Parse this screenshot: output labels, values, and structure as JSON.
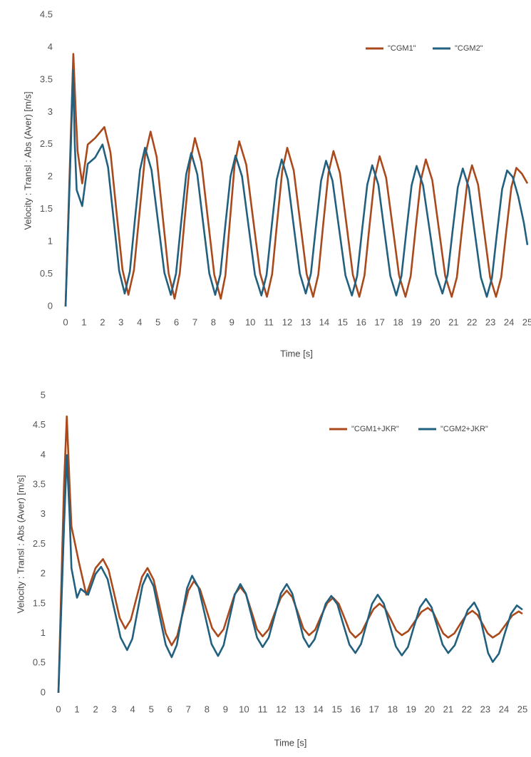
{
  "chart_data": [
    {
      "type": "line",
      "x_label": "Time [s]",
      "y_label": "Velocity : Transl : Abs (Aver) [m/s]",
      "xlim": [
        0,
        25
      ],
      "xticks": [
        0,
        1,
        2,
        3,
        4,
        5,
        6,
        7,
        8,
        9,
        10,
        11,
        12,
        13,
        14,
        15,
        16,
        17,
        18,
        19,
        20,
        21,
        22,
        23,
        24,
        25
      ],
      "ylim": [
        0,
        4.5
      ],
      "yticks": [
        0,
        0.5,
        1,
        1.5,
        2,
        2.5,
        3,
        3.5,
        4,
        4.5
      ],
      "grid": false,
      "legend": "top-right",
      "series": [
        {
          "name": "\"CGM1\"",
          "color": "#a9491c",
          "x": [
            0,
            0.3,
            0.42,
            0.55,
            0.65,
            0.9,
            1.2,
            1.6,
            2.1,
            2.43,
            2.75,
            3.08,
            3.4,
            3.7,
            4.0,
            4.3,
            4.6,
            4.93,
            5.25,
            5.58,
            5.9,
            6.18,
            6.45,
            6.73,
            7.0,
            7.35,
            7.7,
            8.05,
            8.4,
            8.65,
            8.9,
            9.15,
            9.4,
            9.78,
            10.15,
            10.53,
            10.9,
            11.18,
            11.45,
            11.73,
            12.0,
            12.35,
            12.7,
            13.05,
            13.4,
            13.68,
            13.95,
            14.23,
            14.5,
            14.85,
            15.2,
            15.55,
            15.9,
            16.18,
            16.45,
            16.73,
            17.0,
            17.35,
            17.7,
            18.05,
            18.4,
            18.68,
            18.95,
            19.23,
            19.5,
            19.85,
            20.2,
            20.55,
            20.9,
            21.18,
            21.45,
            21.73,
            22.0,
            22.33,
            22.65,
            22.98,
            23.3,
            23.58,
            23.85,
            24.13,
            24.4,
            24.7,
            25
          ],
          "values": [
            0,
            2.8,
            3.9,
            3.0,
            2.4,
            1.9,
            2.5,
            2.6,
            2.77,
            2.38,
            1.48,
            0.57,
            0.18,
            0.56,
            1.44,
            2.32,
            2.7,
            2.31,
            1.41,
            0.51,
            0.12,
            0.51,
            1.36,
            2.21,
            2.6,
            2.23,
            1.36,
            0.49,
            0.12,
            0.48,
            1.34,
            2.19,
            2.55,
            2.19,
            1.35,
            0.51,
            0.15,
            0.5,
            1.3,
            2.1,
            2.45,
            2.1,
            1.3,
            0.5,
            0.15,
            0.49,
            1.28,
            2.06,
            2.4,
            2.06,
            1.28,
            0.49,
            0.15,
            0.48,
            1.24,
            1.99,
            2.32,
            1.99,
            1.24,
            0.48,
            0.15,
            0.47,
            1.21,
            1.95,
            2.27,
            1.95,
            1.21,
            0.47,
            0.15,
            0.45,
            1.17,
            1.88,
            2.18,
            1.88,
            1.17,
            0.45,
            0.15,
            0.45,
            1.15,
            1.84,
            2.14,
            2.05,
            1.9
          ]
        },
        {
          "name": "\"CGM2\"",
          "color": "#22607f",
          "x": [
            0,
            0.3,
            0.4,
            0.5,
            0.6,
            0.9,
            1.2,
            1.6,
            2.0,
            2.3,
            2.6,
            2.9,
            3.2,
            3.48,
            3.75,
            4.03,
            4.3,
            4.65,
            5.0,
            5.35,
            5.7,
            5.98,
            6.25,
            6.53,
            6.8,
            7.13,
            7.45,
            7.78,
            8.1,
            8.38,
            8.65,
            8.93,
            9.2,
            9.55,
            9.9,
            10.25,
            10.6,
            10.88,
            11.15,
            11.43,
            11.7,
            12.03,
            12.35,
            12.68,
            13.0,
            13.28,
            13.55,
            13.83,
            14.1,
            14.45,
            14.8,
            15.15,
            15.5,
            15.78,
            16.05,
            16.33,
            16.6,
            16.93,
            17.25,
            17.58,
            17.9,
            18.18,
            18.45,
            18.73,
            19.0,
            19.35,
            19.7,
            20.05,
            20.4,
            20.68,
            20.95,
            21.23,
            21.5,
            21.83,
            22.15,
            22.48,
            22.8,
            23.08,
            23.35,
            23.63,
            23.9,
            24.2,
            24.5,
            24.8,
            25
          ],
          "values": [
            0,
            2.6,
            3.65,
            2.5,
            1.8,
            1.55,
            2.2,
            2.3,
            2.5,
            2.15,
            1.35,
            0.55,
            0.2,
            0.54,
            1.33,
            2.11,
            2.45,
            2.11,
            1.32,
            0.52,
            0.18,
            0.51,
            1.28,
            2.04,
            2.37,
            2.04,
            1.28,
            0.51,
            0.18,
            0.5,
            1.26,
            2.01,
            2.33,
            2.01,
            1.25,
            0.49,
            0.17,
            0.49,
            1.22,
            1.96,
            2.27,
            1.96,
            1.24,
            0.51,
            0.2,
            0.51,
            1.23,
            1.94,
            2.25,
            1.94,
            1.21,
            0.48,
            0.17,
            0.47,
            1.18,
            1.88,
            2.18,
            1.88,
            1.18,
            0.47,
            0.17,
            0.47,
            1.17,
            1.87,
            2.17,
            1.87,
            1.19,
            0.5,
            0.2,
            0.49,
            1.17,
            1.84,
            2.13,
            1.83,
            1.14,
            0.45,
            0.15,
            0.44,
            1.13,
            1.81,
            2.1,
            2.0,
            1.7,
            1.3,
            0.95
          ]
        }
      ]
    },
    {
      "type": "line",
      "x_label": "Time [s]",
      "y_label": "Velocity : Transl : Abs (Aver) [m/s]",
      "xlim": [
        0,
        25
      ],
      "xticks": [
        0,
        1,
        2,
        3,
        4,
        5,
        6,
        7,
        8,
        9,
        10,
        11,
        12,
        13,
        14,
        15,
        16,
        17,
        18,
        19,
        20,
        21,
        22,
        23,
        24,
        25
      ],
      "ylim": [
        0,
        5
      ],
      "yticks": [
        0,
        0.5,
        1,
        1.5,
        2,
        2.5,
        3,
        3.5,
        4,
        4.5,
        5
      ],
      "grid": false,
      "legend": "top-right",
      "series": [
        {
          "name": "\"CGM1+JKR\"",
          "color": "#a9491c",
          "x": [
            0,
            0.3,
            0.45,
            0.6,
            0.7,
            0.9,
            1.1,
            1.5,
            2.0,
            2.4,
            2.7,
            3.0,
            3.3,
            3.6,
            3.9,
            4.2,
            4.5,
            4.8,
            5.13,
            5.45,
            5.78,
            6.1,
            6.4,
            6.7,
            7.0,
            7.3,
            7.63,
            7.95,
            8.28,
            8.6,
            8.9,
            9.2,
            9.5,
            9.8,
            10.1,
            10.4,
            10.7,
            11.0,
            11.33,
            11.65,
            11.98,
            12.3,
            12.6,
            12.9,
            13.2,
            13.5,
            13.83,
            14.15,
            14.48,
            14.8,
            15.1,
            15.4,
            15.7,
            16.0,
            16.33,
            16.65,
            16.98,
            17.3,
            17.6,
            17.9,
            18.2,
            18.5,
            18.85,
            19.2,
            19.55,
            19.9,
            20.18,
            20.45,
            20.73,
            21.0,
            21.33,
            21.65,
            21.98,
            22.3,
            22.58,
            22.85,
            23.13,
            23.4,
            23.75,
            24.1,
            24.45,
            24.8,
            25
          ],
          "values": [
            0,
            3.5,
            4.65,
            3.5,
            2.8,
            2.5,
            2.2,
            1.65,
            2.1,
            2.25,
            2.07,
            1.67,
            1.26,
            1.08,
            1.23,
            1.59,
            1.95,
            2.1,
            1.9,
            1.45,
            1.0,
            0.8,
            0.96,
            1.34,
            1.72,
            1.88,
            1.74,
            1.42,
            1.09,
            0.95,
            1.07,
            1.37,
            1.66,
            1.78,
            1.66,
            1.37,
            1.07,
            0.95,
            1.07,
            1.34,
            1.6,
            1.72,
            1.61,
            1.35,
            1.08,
            0.97,
            1.06,
            1.29,
            1.51,
            1.6,
            1.5,
            1.27,
            1.03,
            0.93,
            1.02,
            1.22,
            1.41,
            1.5,
            1.42,
            1.24,
            1.05,
            0.97,
            1.04,
            1.2,
            1.36,
            1.43,
            1.36,
            1.18,
            1.0,
            0.93,
            1.0,
            1.16,
            1.31,
            1.38,
            1.31,
            1.16,
            1.0,
            0.93,
            1.0,
            1.15,
            1.3,
            1.37,
            1.33
          ]
        },
        {
          "name": "\"CGM2+JKR\"",
          "color": "#22607f",
          "x": [
            0,
            0.3,
            0.45,
            0.6,
            0.7,
            1.0,
            1.2,
            1.6,
            2.0,
            2.3,
            2.65,
            3.0,
            3.35,
            3.7,
            3.98,
            4.25,
            4.53,
            4.8,
            5.13,
            5.45,
            5.78,
            6.1,
            6.38,
            6.65,
            6.93,
            7.2,
            7.55,
            7.9,
            8.25,
            8.6,
            8.9,
            9.2,
            9.5,
            9.8,
            10.1,
            10.4,
            10.7,
            11.0,
            11.33,
            11.65,
            11.98,
            12.3,
            12.6,
            12.9,
            13.2,
            13.5,
            13.8,
            14.1,
            14.4,
            14.7,
            15.03,
            15.35,
            15.68,
            16.0,
            16.3,
            16.6,
            16.9,
            17.2,
            17.53,
            17.85,
            18.18,
            18.5,
            18.83,
            19.15,
            19.48,
            19.8,
            20.1,
            20.4,
            20.7,
            21.0,
            21.35,
            21.7,
            22.05,
            22.4,
            22.65,
            22.9,
            23.15,
            23.4,
            23.73,
            24.05,
            24.38,
            24.7,
            25
          ],
          "values": [
            0,
            2.8,
            4.0,
            3.0,
            2.1,
            1.6,
            1.75,
            1.65,
            2.0,
            2.12,
            1.91,
            1.42,
            0.93,
            0.72,
            0.91,
            1.36,
            1.81,
            2.0,
            1.79,
            1.3,
            0.81,
            0.6,
            0.81,
            1.29,
            1.76,
            1.97,
            1.77,
            1.3,
            0.82,
            0.62,
            0.8,
            1.23,
            1.65,
            1.83,
            1.67,
            1.3,
            0.93,
            0.77,
            0.93,
            1.3,
            1.67,
            1.83,
            1.67,
            1.3,
            0.93,
            0.77,
            0.9,
            1.2,
            1.5,
            1.63,
            1.49,
            1.15,
            0.81,
            0.67,
            0.82,
            1.16,
            1.5,
            1.65,
            1.5,
            1.14,
            0.78,
            0.63,
            0.77,
            1.11,
            1.44,
            1.58,
            1.44,
            1.13,
            0.81,
            0.67,
            0.8,
            1.1,
            1.39,
            1.52,
            1.37,
            1.02,
            0.67,
            0.52,
            0.66,
            1.0,
            1.33,
            1.47,
            1.4
          ]
        }
      ]
    }
  ]
}
